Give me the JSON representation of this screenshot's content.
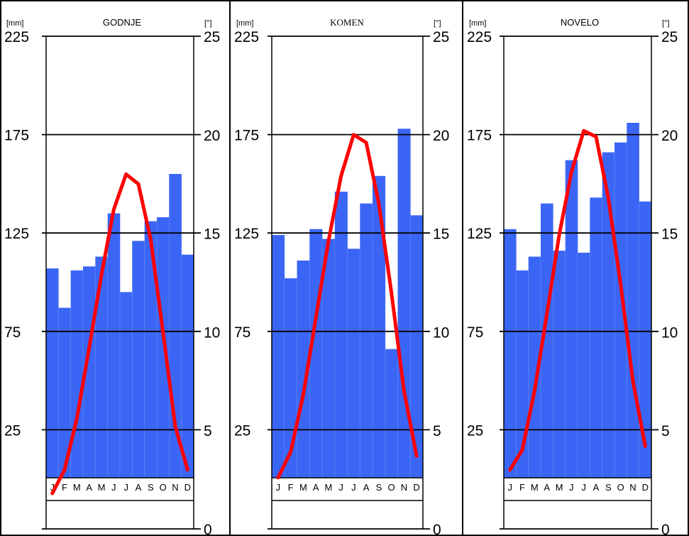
{
  "chart_data": [
    {
      "type": "bar",
      "title": "GODNJE",
      "left_unit": "[mm]",
      "right_unit": "[°]",
      "categories": [
        "J",
        "F",
        "M",
        "A",
        "M",
        "J",
        "J",
        "A",
        "S",
        "O",
        "N",
        "D"
      ],
      "series": [
        {
          "values": [
            107,
            87,
            106,
            108,
            113,
            135,
            95,
            121,
            131,
            133,
            155,
            114
          ]
        },
        {
          "values": [
            1.8,
            3.0,
            5.6,
            9.2,
            12.9,
            16.2,
            18.0,
            17.5,
            14.7,
            10.0,
            5.2,
            3.0
          ]
        }
      ],
      "y_left_ticks": [
        225,
        175,
        125,
        75,
        25
      ],
      "y_right_ticks": [
        25,
        20,
        15,
        10,
        5,
        0
      ],
      "colors": {
        "bars": "#3b66f5",
        "line": "#ff0000"
      }
    },
    {
      "type": "bar",
      "title": "KOMEN",
      "left_unit": "[mm]",
      "right_unit": "[°]",
      "categories": [
        "J",
        "F",
        "M",
        "A",
        "M",
        "J",
        "J",
        "A",
        "S",
        "O",
        "N",
        "D"
      ],
      "series": [
        {
          "values": [
            124,
            102,
            111,
            127,
            122,
            146,
            117,
            140,
            154,
            66,
            178,
            134
          ]
        },
        {
          "values": [
            2.6,
            3.9,
            6.8,
            10.7,
            14.6,
            17.9,
            20.0,
            19.6,
            16.5,
            12.0,
            7.0,
            3.7
          ]
        }
      ],
      "y_left_ticks": [
        225,
        175,
        125,
        75,
        25
      ],
      "y_right_ticks": [
        25,
        20,
        15,
        10,
        5,
        0
      ],
      "colors": {
        "bars": "#3b66f5",
        "line": "#ff0000"
      }
    },
    {
      "type": "bar",
      "title": "NOVELO",
      "left_unit": "[mm]",
      "right_unit": "[°]",
      "categories": [
        "J",
        "F",
        "M",
        "A",
        "M",
        "J",
        "J",
        "A",
        "S",
        "O",
        "N",
        "D"
      ],
      "series": [
        {
          "values": [
            127,
            106,
            113,
            140,
            116,
            162,
            115,
            143,
            166,
            171,
            181,
            141
          ]
        },
        {
          "values": [
            3.0,
            4.0,
            7.0,
            10.9,
            14.9,
            18.1,
            20.2,
            19.9,
            16.8,
            12.4,
            7.5,
            4.2
          ]
        }
      ],
      "y_left_ticks": [
        225,
        175,
        125,
        75,
        25
      ],
      "y_right_ticks": [
        25,
        20,
        15,
        10,
        5,
        0
      ],
      "colors": {
        "bars": "#3b66f5",
        "line": "#ff0000"
      }
    }
  ]
}
